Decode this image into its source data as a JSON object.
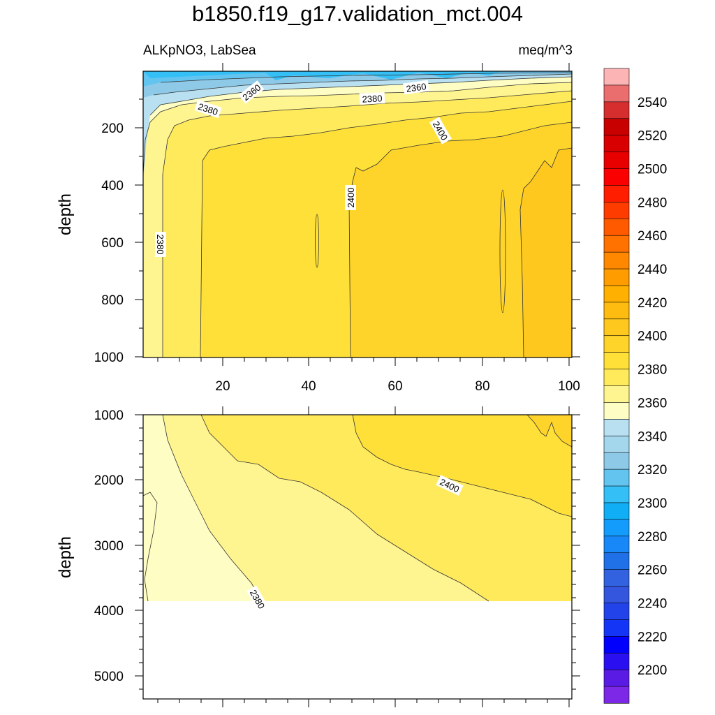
{
  "title": "b1850.f19_g17.validation_mct.004",
  "subtitle_left": "ALKpNO3, LabSea",
  "subtitle_right": "meq/m^3",
  "chart_data": [
    {
      "type": "heatmap",
      "panel": "upper",
      "ylabel": "depth",
      "xlabel": "",
      "x_ticks": [
        "20",
        "40",
        "60",
        "80",
        "100"
      ],
      "y_ticks": [
        "200",
        "400",
        "600",
        "800",
        "1000"
      ],
      "xlim": [
        0,
        100
      ],
      "ylim": [
        1000,
        0
      ],
      "contour_labels": [
        "2360",
        "2360",
        "2380",
        "2380",
        "2400",
        "2400",
        "2380"
      ]
    },
    {
      "type": "heatmap",
      "panel": "lower",
      "ylabel": "depth",
      "xlabel": "",
      "y_ticks": [
        "1000",
        "2000",
        "3000",
        "4000",
        "5000"
      ],
      "xlim": [
        0,
        100
      ],
      "ylim": [
        5400,
        1000
      ],
      "contour_labels": [
        "2400",
        "2380"
      ]
    }
  ],
  "colorbar": {
    "tick_labels": [
      "2540",
      "2520",
      "2500",
      "2480",
      "2460",
      "2440",
      "2420",
      "2400",
      "2380",
      "2360",
      "2340",
      "2320",
      "2300",
      "2280",
      "2260",
      "2240",
      "2220",
      "2200"
    ],
    "colors": [
      "#fcb4b4",
      "#ea6e6e",
      "#d62e2e",
      "#c80000",
      "#d80000",
      "#e80000",
      "#fa0000",
      "#ff1e00",
      "#ff3c00",
      "#ff5a00",
      "#ff7200",
      "#ff8800",
      "#ff9c00",
      "#ffb000",
      "#ffbc10",
      "#ffc81e",
      "#ffd42a",
      "#fee038",
      "#ffea5c",
      "#fef490",
      "#fefec4",
      "#b8e0f0",
      "#a4d6ec",
      "#8ecae8",
      "#64c4f0",
      "#34c0f6",
      "#10aef4",
      "#149cfc",
      "#1888f8",
      "#2070e8",
      "#3262e0",
      "#3456de",
      "#2242ea",
      "#1434f6",
      "#0000fc",
      "#2a10f0",
      "#5a1ce4",
      "#7c28e6"
    ]
  }
}
